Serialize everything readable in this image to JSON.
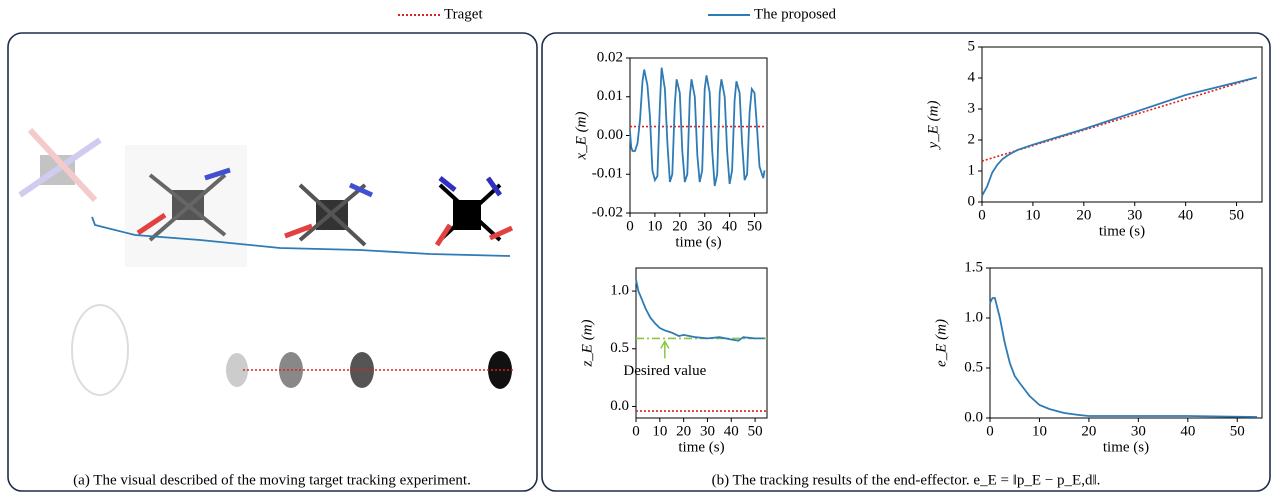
{
  "chart_data": [
    {
      "type": "line",
      "ylabel": "x_E (m)",
      "xlabel": "time (s)",
      "xlim": [
        0,
        55
      ],
      "xticks": [
        0,
        10,
        20,
        30,
        40,
        50
      ],
      "ylim": [
        -0.02,
        0.02
      ],
      "yticks": [
        -0.02,
        -0.01,
        {
          "value": 0,
          "label": "0.00"
        },
        0.01,
        0.02
      ],
      "series": [
        {
          "name": "Traget",
          "color": "#e02020",
          "linestyle": "dotted",
          "x": [
            0,
            54
          ],
          "values": [
            0.0023,
            0.0023
          ]
        },
        {
          "name": "The proposed",
          "color": "#2f7bb5",
          "linestyle": "solid",
          "x": [
            0,
            0.5,
            1,
            2,
            3,
            4,
            5,
            5.7,
            7,
            8,
            9,
            10,
            11,
            12,
            12.7,
            14,
            15,
            16,
            17,
            18,
            18.7,
            20,
            21,
            22,
            23,
            24,
            24.7,
            26,
            27,
            28,
            29,
            30,
            30.7,
            32,
            33,
            34,
            35,
            36,
            36.7,
            38,
            39,
            40,
            41,
            42,
            42.7,
            44,
            45,
            46,
            47,
            48,
            48.9,
            50,
            51,
            52,
            53,
            53.5,
            54
          ],
          "values": [
            0.001,
            -0.003,
            -0.004,
            -0.004,
            -0.002,
            0.004,
            0.014,
            0.017,
            0.013,
            0.005,
            -0.009,
            -0.0115,
            -0.0105,
            0.008,
            0.0175,
            0.012,
            -0.002,
            -0.012,
            -0.01,
            0.008,
            0.0145,
            0.011,
            -0.004,
            -0.012,
            -0.01,
            0.01,
            0.0145,
            0.01,
            -0.005,
            -0.012,
            -0.009,
            0.012,
            0.0155,
            0.011,
            -0.004,
            -0.013,
            -0.01,
            0.011,
            0.0145,
            0.01,
            -0.004,
            -0.0125,
            -0.009,
            0.009,
            0.014,
            0.011,
            -0.002,
            -0.0115,
            -0.01,
            0.006,
            0.012,
            0.011,
            0.002,
            -0.008,
            -0.01,
            -0.011,
            -0.009
          ]
        }
      ]
    },
    {
      "type": "line",
      "ylabel": "y_E (m)",
      "xlabel": "time (s)",
      "xlim": [
        0,
        55
      ],
      "xticks": [
        0,
        10,
        20,
        30,
        40,
        50
      ],
      "ylim": [
        0,
        5
      ],
      "yticks": [
        0,
        1,
        2,
        3,
        4,
        5
      ],
      "series": [
        {
          "color": "#e02020",
          "linestyle": "dotted",
          "x": [
            0,
            54
          ],
          "values": [
            1.32,
            4.02
          ]
        },
        {
          "color": "#2f7bb5",
          "linestyle": "solid",
          "x": [
            0,
            1,
            2,
            3,
            4,
            5,
            7,
            10,
            15,
            20,
            30,
            40,
            54
          ],
          "values": [
            0.2,
            0.5,
            0.95,
            1.2,
            1.38,
            1.5,
            1.68,
            1.85,
            2.1,
            2.35,
            2.9,
            3.45,
            4.02
          ]
        }
      ]
    },
    {
      "type": "line",
      "ylabel": "z_E (m)",
      "xlabel": "time (s)",
      "xlim": [
        0,
        55
      ],
      "xticks": [
        0,
        10,
        20,
        30,
        40,
        50
      ],
      "ylim": [
        -0.1,
        1.2
      ],
      "yticks": [
        {
          "value": 0,
          "label": "0.0"
        },
        0.5,
        {
          "value": 1,
          "label": "1.0"
        }
      ],
      "annotation": "Desired value",
      "series": [
        {
          "color": "#e02020",
          "linestyle": "dotted",
          "x": [
            0,
            55
          ],
          "values": [
            -0.04,
            -0.04
          ]
        },
        {
          "color": "#8cc63f",
          "linestyle": "dashdot",
          "x": [
            0,
            55
          ],
          "values": [
            0.59,
            0.59
          ]
        },
        {
          "color": "#2f7bb5",
          "linestyle": "solid",
          "x": [
            0,
            1,
            2,
            4,
            6,
            8,
            10,
            12,
            15,
            18,
            20,
            25,
            30,
            35,
            40,
            43,
            45,
            50,
            54
          ],
          "values": [
            1.1,
            1.0,
            0.95,
            0.85,
            0.77,
            0.72,
            0.68,
            0.66,
            0.64,
            0.61,
            0.62,
            0.6,
            0.59,
            0.6,
            0.58,
            0.57,
            0.6,
            0.59,
            0.59
          ]
        }
      ]
    },
    {
      "type": "line",
      "ylabel": "e_E (m)",
      "xlabel": "time (s)",
      "xlim": [
        0,
        55
      ],
      "xticks": [
        0,
        10,
        20,
        30,
        40,
        50
      ],
      "ylim": [
        0,
        1.5
      ],
      "yticks": [
        {
          "value": 0,
          "label": "0.0"
        },
        0.5,
        {
          "value": 1,
          "label": "1.0"
        },
        1.5
      ],
      "series": [
        {
          "color": "#2f7bb5",
          "linestyle": "solid",
          "x": [
            0,
            0.5,
            1,
            2,
            3,
            4,
            5,
            6,
            8,
            10,
            12,
            15,
            18,
            20,
            30,
            40,
            54
          ],
          "values": [
            1.15,
            1.2,
            1.2,
            1.0,
            0.75,
            0.55,
            0.42,
            0.35,
            0.22,
            0.13,
            0.09,
            0.05,
            0.03,
            0.02,
            0.02,
            0.02,
            0.01
          ]
        }
      ]
    }
  ],
  "captions": [
    "(a) The visual described of the moving target tracking experiment.",
    "(b) The tracking results of the end-effector. e_E = ‖p_E − p_E,d‖."
  ]
}
